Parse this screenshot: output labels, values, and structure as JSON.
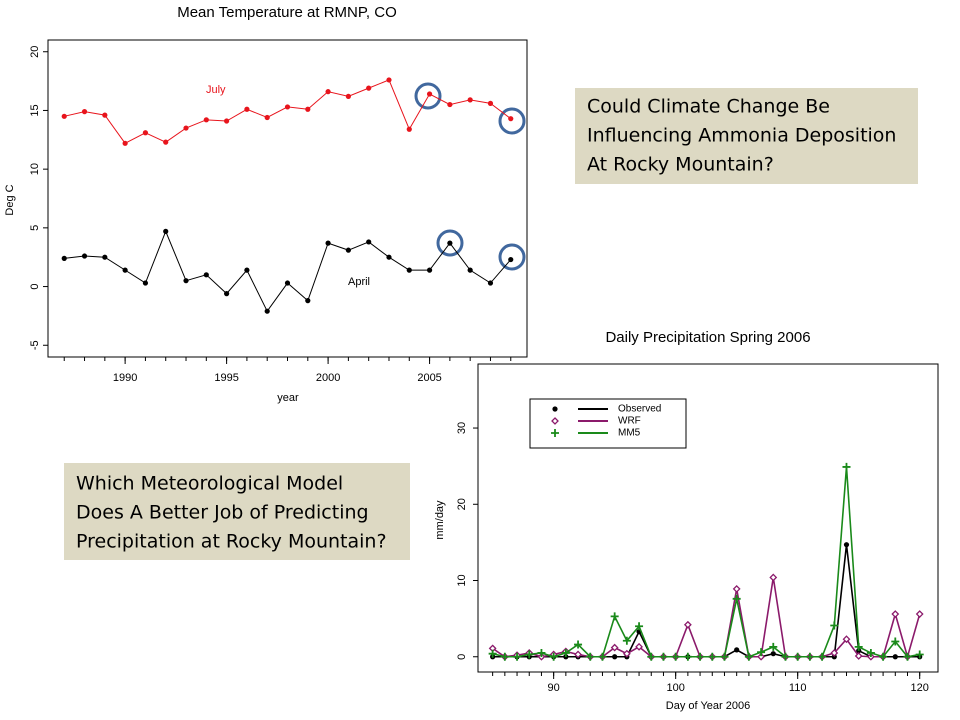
{
  "chart_data": [
    {
      "type": "line",
      "title": "Mean Temperature at RMNP, CO",
      "x_label": "year",
      "y_label": "Deg C",
      "x": [
        1987,
        1988,
        1989,
        1990,
        1991,
        1992,
        1993,
        1994,
        1995,
        1996,
        1997,
        1998,
        1999,
        2000,
        2001,
        2002,
        2003,
        2004,
        2005,
        2006,
        2007,
        2008,
        2009
      ],
      "xlim": [
        1986.2,
        2009.8
      ],
      "xticks": [
        1990,
        1995,
        2000,
        2005
      ],
      "ylim": [
        -6,
        21
      ],
      "yticks": [
        -5,
        0,
        5,
        10,
        15,
        20
      ],
      "series": [
        {
          "name": "July",
          "color": "#e8141c",
          "marker": "dot",
          "values": [
            14.5,
            14.9,
            14.6,
            12.2,
            13.1,
            12.3,
            13.5,
            14.2,
            14.1,
            15.1,
            14.4,
            15.3,
            15.1,
            16.6,
            16.2,
            16.9,
            17.6,
            13.4,
            16.4,
            15.5,
            15.9,
            15.6,
            14.3
          ]
        },
        {
          "name": "April",
          "color": "#000000",
          "marker": "dot",
          "values": [
            2.4,
            2.6,
            2.5,
            1.4,
            0.3,
            4.7,
            0.5,
            1.0,
            -0.6,
            1.4,
            -2.1,
            0.3,
            -1.2,
            3.7,
            3.1,
            3.8,
            2.5,
            1.4,
            1.4,
            3.7,
            1.4,
            0.3,
            2.3
          ]
        }
      ]
    },
    {
      "type": "line",
      "title": "Daily Precipitation Spring 2006",
      "x_label": "Day of Year 2006",
      "y_label": "mm/day",
      "x": [
        85,
        86,
        87,
        88,
        89,
        90,
        91,
        92,
        93,
        94,
        95,
        96,
        97,
        98,
        99,
        100,
        101,
        102,
        103,
        104,
        105,
        106,
        107,
        108,
        109,
        110,
        111,
        112,
        113,
        114,
        115,
        116,
        117,
        118,
        119,
        120
      ],
      "xlim": [
        83.8,
        121.5
      ],
      "xticks": [
        90,
        100,
        110,
        120
      ],
      "ylim": [
        -2,
        38.4
      ],
      "yticks": [
        0,
        10,
        20,
        30
      ],
      "legend": "top-left",
      "series": [
        {
          "name": "Observed",
          "color": "#000000",
          "marker": "dot",
          "values": [
            0,
            0,
            0,
            0,
            0,
            0,
            0,
            0,
            0,
            0,
            0,
            0,
            3.3,
            0,
            0,
            0,
            0,
            0,
            0,
            0,
            0.9,
            0,
            0,
            0.4,
            0,
            0,
            0,
            0,
            0,
            14.7,
            0.8,
            0,
            0,
            0,
            0,
            0
          ]
        },
        {
          "name": "WRF",
          "color": "#8b1a6b",
          "marker": "diamond",
          "values": [
            1.1,
            0,
            0.2,
            0.5,
            0,
            0.3,
            0.7,
            0.3,
            0,
            0,
            1.2,
            0.4,
            1.3,
            0,
            0,
            0,
            4.2,
            0,
            0,
            0,
            8.9,
            0,
            0,
            10.4,
            0,
            0,
            0,
            0,
            0.5,
            2.3,
            0.1,
            0,
            0,
            5.6,
            0,
            5.6
          ]
        },
        {
          "name": "MM5",
          "color": "#1a8a1a",
          "marker": "plus",
          "values": [
            0.4,
            0,
            0,
            0.3,
            0.5,
            0,
            0.5,
            1.6,
            0,
            0,
            5.3,
            2.1,
            4.0,
            0,
            0,
            0,
            0,
            0,
            0,
            0,
            7.6,
            0,
            0.6,
            1.3,
            0,
            0,
            0,
            0,
            4.1,
            24.9,
            1.3,
            0.5,
            0,
            2.0,
            0,
            0.3
          ]
        }
      ]
    }
  ],
  "callouts": [
    {
      "lines": [
        "Could Climate Change Be",
        "Influencing Ammonia Deposition",
        "At Rocky Mountain?"
      ]
    },
    {
      "lines": [
        "Which Meteorological Model",
        "Does A Better Job of Predicting",
        "Precipitation at Rocky Mountain?"
      ]
    }
  ]
}
